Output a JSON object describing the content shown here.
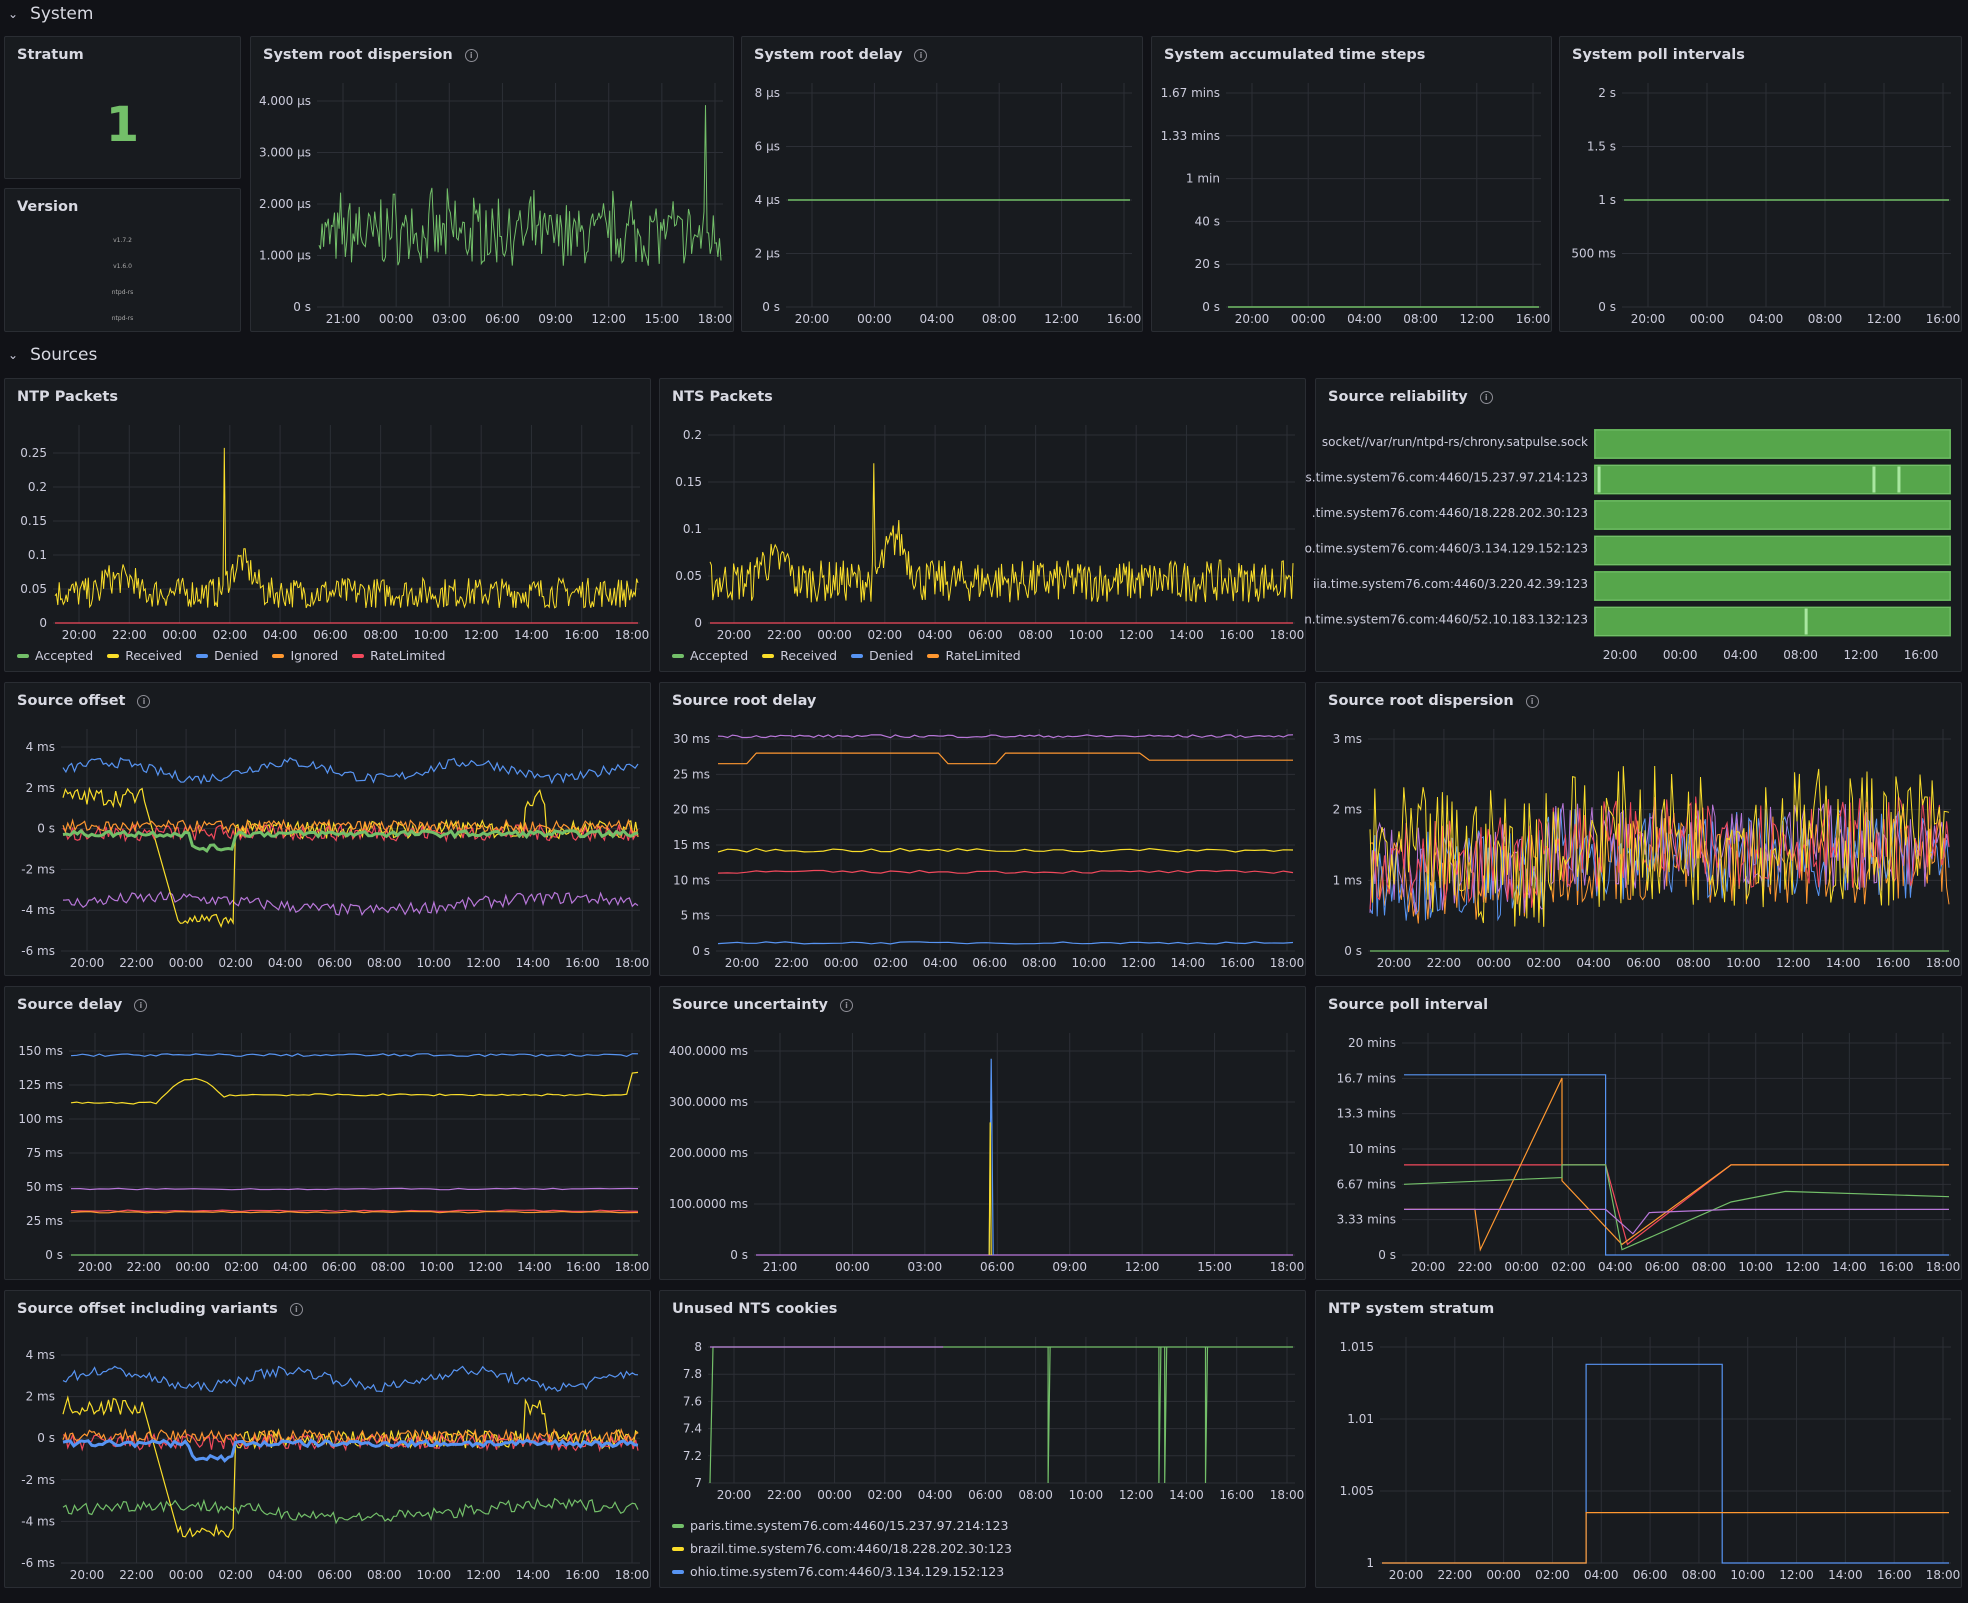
{
  "rows": {
    "system": "System",
    "sources": "Sources"
  },
  "panels": {
    "stratum": {
      "title": "Stratum",
      "value": "1"
    },
    "version": {
      "title": "Version",
      "items": [
        "v1.7.2",
        "v1.6.0",
        "ntpd-rs",
        "ntpd-rs"
      ]
    },
    "sys_root_disp": {
      "title": "System root dispersion",
      "yticks": [
        "4.000 µs",
        "3.000 µs",
        "2.000 µs",
        "1.000 µs",
        "0 s"
      ],
      "xticks": [
        "21:00",
        "00:00",
        "03:00",
        "06:00",
        "09:00",
        "12:00",
        "15:00",
        "18:00"
      ]
    },
    "sys_root_delay": {
      "title": "System root delay",
      "yticks": [
        "8 µs",
        "6 µs",
        "4 µs",
        "2 µs",
        "0 s"
      ],
      "xticks": [
        "20:00",
        "00:00",
        "04:00",
        "08:00",
        "12:00",
        "16:00"
      ]
    },
    "sys_acc_steps": {
      "title": "System accumulated time steps",
      "yticks": [
        "1.67 mins",
        "1.33 mins",
        "1 min",
        "40 s",
        "20 s",
        "0 s"
      ],
      "xticks": [
        "20:00",
        "00:00",
        "04:00",
        "08:00",
        "12:00",
        "16:00"
      ]
    },
    "sys_poll": {
      "title": "System poll intervals",
      "yticks": [
        "2 s",
        "1.5 s",
        "1 s",
        "500 ms",
        "0 s"
      ],
      "xticks": [
        "20:00",
        "00:00",
        "04:00",
        "08:00",
        "12:00",
        "16:00"
      ]
    },
    "ntp_packets": {
      "title": "NTP Packets",
      "yticks": [
        "0.25",
        "0.2",
        "0.15",
        "0.1",
        "0.05",
        "0"
      ],
      "xticks": [
        "20:00",
        "22:00",
        "00:00",
        "02:00",
        "04:00",
        "06:00",
        "08:00",
        "10:00",
        "12:00",
        "14:00",
        "16:00",
        "18:00"
      ],
      "legend": [
        "Accepted",
        "Received",
        "Denied",
        "Ignored",
        "RateLimited"
      ]
    },
    "nts_packets": {
      "title": "NTS Packets",
      "yticks": [
        "0.2",
        "0.15",
        "0.1",
        "0.05",
        "0"
      ],
      "xticks": [
        "20:00",
        "22:00",
        "00:00",
        "02:00",
        "04:00",
        "06:00",
        "08:00",
        "10:00",
        "12:00",
        "14:00",
        "16:00",
        "18:00"
      ],
      "legend": [
        "Accepted",
        "Received",
        "Denied",
        "RateLimited"
      ]
    },
    "src_rel": {
      "title": "Source reliability",
      "labels": [
        "socket//var/run/ntpd-rs/chrony.satpulse.sock",
        "s.time.system76.com:4460/15.237.97.214:123",
        ".time.system76.com:4460/18.228.202.30:123",
        "o.time.system76.com:4460/3.134.129.152:123",
        "iia.time.system76.com:4460/3.220.42.39:123",
        "n.time.system76.com:4460/52.10.183.132:123"
      ],
      "xticks": [
        "20:00",
        "00:00",
        "04:00",
        "08:00",
        "12:00",
        "16:00"
      ]
    },
    "src_offset": {
      "title": "Source offset",
      "yticks": [
        "4 ms",
        "2 ms",
        "0 s",
        "-2 ms",
        "-4 ms",
        "-6 ms"
      ],
      "xticks": [
        "20:00",
        "22:00",
        "00:00",
        "02:00",
        "04:00",
        "06:00",
        "08:00",
        "10:00",
        "12:00",
        "14:00",
        "16:00",
        "18:00"
      ]
    },
    "src_root_delay": {
      "title": "Source root delay",
      "yticks": [
        "30 ms",
        "25 ms",
        "20 ms",
        "15 ms",
        "10 ms",
        "5 ms",
        "0 s"
      ],
      "xticks": [
        "20:00",
        "22:00",
        "00:00",
        "02:00",
        "04:00",
        "06:00",
        "08:00",
        "10:00",
        "12:00",
        "14:00",
        "16:00",
        "18:00"
      ]
    },
    "src_root_disp": {
      "title": "Source root dispersion",
      "yticks": [
        "3 ms",
        "2 ms",
        "1 ms",
        "0 s"
      ],
      "xticks": [
        "20:00",
        "22:00",
        "00:00",
        "02:00",
        "04:00",
        "06:00",
        "08:00",
        "10:00",
        "12:00",
        "14:00",
        "16:00",
        "18:00"
      ]
    },
    "src_delay": {
      "title": "Source delay",
      "yticks": [
        "150 ms",
        "125 ms",
        "100 ms",
        "75 ms",
        "50 ms",
        "25 ms",
        "0 s"
      ],
      "xticks": [
        "20:00",
        "22:00",
        "00:00",
        "02:00",
        "04:00",
        "06:00",
        "08:00",
        "10:00",
        "12:00",
        "14:00",
        "16:00",
        "18:00"
      ]
    },
    "src_unc": {
      "title": "Source uncertainty",
      "yticks": [
        "400.0000 ms",
        "300.0000 ms",
        "200.0000 ms",
        "100.0000 ms",
        "0 s"
      ],
      "xticks": [
        "21:00",
        "00:00",
        "03:00",
        "06:00",
        "09:00",
        "12:00",
        "15:00",
        "18:00"
      ]
    },
    "src_poll": {
      "title": "Source poll interval",
      "yticks": [
        "20 mins",
        "16.7 mins",
        "13.3 mins",
        "10 mins",
        "6.67 mins",
        "3.33 mins",
        "0 s"
      ],
      "xticks": [
        "20:00",
        "22:00",
        "00:00",
        "02:00",
        "04:00",
        "06:00",
        "08:00",
        "10:00",
        "12:00",
        "14:00",
        "16:00",
        "18:00"
      ]
    },
    "src_offset_var": {
      "title": "Source offset including variants",
      "yticks": [
        "4 ms",
        "2 ms",
        "0 s",
        "-2 ms",
        "-4 ms",
        "-6 ms"
      ],
      "xticks": [
        "20:00",
        "22:00",
        "00:00",
        "02:00",
        "04:00",
        "06:00",
        "08:00",
        "10:00",
        "12:00",
        "14:00",
        "16:00",
        "18:00"
      ]
    },
    "nts_cookies": {
      "title": "Unused NTS cookies",
      "yticks": [
        "8",
        "7.8",
        "7.6",
        "7.4",
        "7.2",
        "7"
      ],
      "xticks": [
        "20:00",
        "22:00",
        "00:00",
        "02:00",
        "04:00",
        "06:00",
        "08:00",
        "10:00",
        "12:00",
        "14:00",
        "16:00",
        "18:00"
      ],
      "legend": [
        "paris.time.system76.com:4460/15.237.97.214:123",
        "brazil.time.system76.com:4460/18.228.202.30:123",
        "ohio.time.system76.com:4460/3.134.129.152:123"
      ]
    },
    "ntp_stratum": {
      "title": "NTP system stratum",
      "yticks": [
        "1.015",
        "1.01",
        "1.005",
        "1"
      ],
      "xticks": [
        "20:00",
        "22:00",
        "00:00",
        "02:00",
        "04:00",
        "06:00",
        "08:00",
        "10:00",
        "12:00",
        "14:00",
        "16:00",
        "18:00"
      ]
    }
  },
  "colors": {
    "green": "#73bf69",
    "yellow": "#fade2a",
    "blue": "#5794f2",
    "orange": "#ff9830",
    "red": "#f2495c",
    "purple": "#b877d9"
  }
}
